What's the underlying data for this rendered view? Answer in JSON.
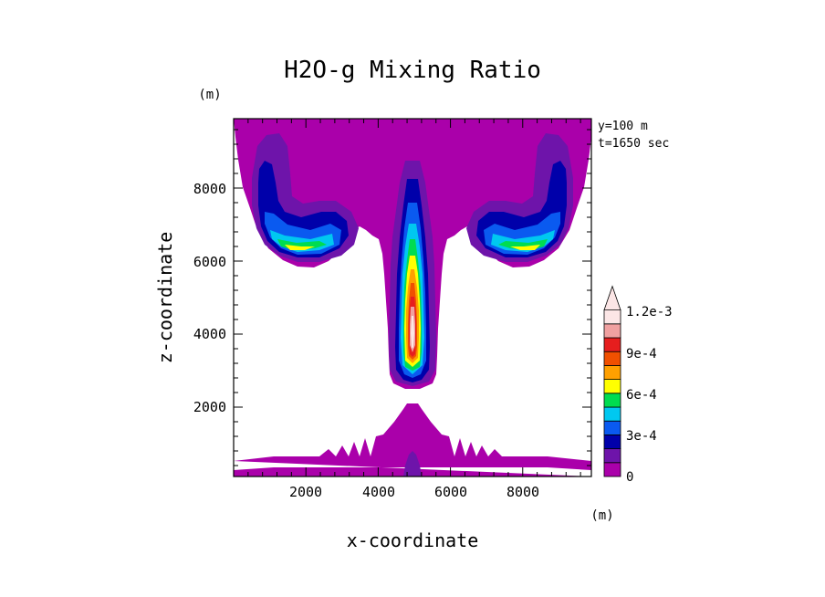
{
  "chart_data": {
    "type": "heatmap",
    "title": "H2O-g Mixing Ratio",
    "xlabel": "x-coordinate",
    "ylabel": "z-coordinate",
    "x_unit": "(m)",
    "y_unit": "(m)",
    "annotations": [
      "y=100 m",
      "t=1650 sec"
    ],
    "xlim": [
      0,
      9900
    ],
    "ylim": [
      100,
      9900
    ],
    "xticks": [
      "2000",
      "4000",
      "6000",
      "8000"
    ],
    "yticks": [
      "2000",
      "4000",
      "6000",
      "8000"
    ],
    "grid": false,
    "colorbar": {
      "placement": "right",
      "levels": [
        0,
        0.00015,
        0.0003,
        0.00045,
        0.0006,
        0.00075,
        0.0009,
        0.00105,
        0.0012,
        0.00135
      ],
      "labels": [
        "0",
        "3e-4",
        "6e-4",
        "9e-4",
        "1.2e-3"
      ],
      "label_values": [
        0,
        0.0003,
        0.0006,
        0.0009,
        0.0012
      ],
      "colors": [
        "#aa00aa",
        "#6e14aa",
        "#0000aa",
        "#0a5af0",
        "#00c8f0",
        "#00dc50",
        "#ffff00",
        "#ffa000",
        "#f05000",
        "#e61e1e",
        "#f0a0a0",
        "#fce6e6"
      ],
      "extend": "max"
    },
    "features": [
      {
        "name": "left lobe",
        "x_center": 1800,
        "z_center": 7000,
        "max_bin": 6
      },
      {
        "name": "central column",
        "x_center": 5000,
        "z_range": [
          2600,
          8700
        ],
        "max_bin": 11
      },
      {
        "name": "right lobe",
        "x_center": 8200,
        "z_center": 7000,
        "max_bin": 6
      },
      {
        "name": "surface layer",
        "z_range": [
          100,
          2100
        ],
        "max_bin": 1
      }
    ]
  }
}
